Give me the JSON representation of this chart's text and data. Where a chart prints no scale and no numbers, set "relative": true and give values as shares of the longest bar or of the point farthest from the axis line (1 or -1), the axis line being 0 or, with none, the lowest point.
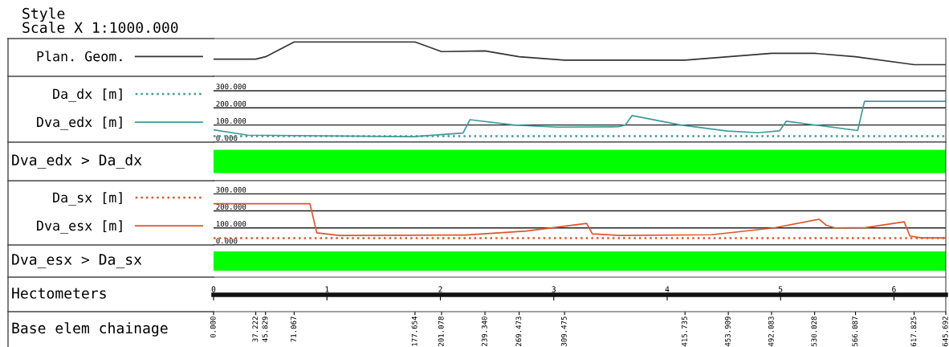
{
  "chart_data": [
    {
      "type": "line",
      "title": "Style\nScale X 1:1000.000",
      "relative": true,
      "legend": "left",
      "tick_labels": false,
      "xlim": [
        0,
        645.692
      ],
      "x": [
        0,
        37.222,
        45.829,
        71.067,
        177.654,
        201.078,
        239.34,
        269.473,
        309.475,
        415.735,
        492.083,
        530.028,
        566.087,
        617.825,
        645.692
      ],
      "series": [
        {
          "name": "Plan. Geom.",
          "color": "#333333",
          "values": [
            0.5,
            0.5,
            0.57,
            1,
            1,
            0.72,
            0.74,
            0.57,
            0.47,
            0.47,
            0.67,
            0.67,
            0.57,
            0.34,
            0.34
          ]
        }
      ]
    },
    {
      "type": "line",
      "legend": "left",
      "tick_labels": "y",
      "grid": "y",
      "xlim": [
        0,
        645.692
      ],
      "ylim": [
        0,
        384
      ],
      "yticks": [
        {
          "value": 0,
          "label": "0.000"
        },
        {
          "value": 100,
          "label": "100.000"
        },
        {
          "value": 200,
          "label": "200.000"
        },
        {
          "value": 300,
          "label": "300.000"
        }
      ],
      "series": [
        {
          "name": "Da_dx [m]",
          "color": "#3d9a9b",
          "line_style": "dotted",
          "x": [
            0,
            645.692
          ],
          "values": [
            35,
            35
          ]
        },
        {
          "name": "Dva_edx [m]",
          "color": "#3d9a9b",
          "line_style": "solid",
          "x": [
            0,
            30,
            176,
            220,
            226,
            265,
            303,
            357,
            363,
            369,
            412,
            453,
            480,
            499,
            505,
            568,
            574,
            645.692
          ],
          "values": [
            72,
            41,
            32,
            53,
            131,
            100,
            88,
            90,
            100,
            155,
            100,
            65,
            55,
            66,
            122,
            68,
            238,
            238
          ]
        }
      ]
    },
    {
      "type": "bar",
      "orientation": "horizontal",
      "ylabel": "Dva_edx > Da_dx",
      "tick_labels": false,
      "xlim": [
        0,
        645.692
      ],
      "categories": [
        null
      ],
      "values": [
        645.692
      ],
      "colors": [
        "#00ff00"
      ]
    },
    {
      "type": "line",
      "legend": "left",
      "tick_labels": "y",
      "grid": "y",
      "xlim": [
        0,
        645.692
      ],
      "ylim": [
        0,
        377
      ],
      "yticks": [
        {
          "value": 0,
          "label": "0.000"
        },
        {
          "value": 100,
          "label": "100.000"
        },
        {
          "value": 200,
          "label": "200.000"
        },
        {
          "value": 300,
          "label": "300.000"
        }
      ],
      "series": [
        {
          "name": "Da_sx [m]",
          "color": "#e0552a",
          "line_style": "dotted",
          "x": [
            0,
            645.692
          ],
          "values": [
            40,
            40
          ]
        },
        {
          "name": "Dva_esx [m]",
          "color": "#e0552a",
          "line_style": "solid",
          "x": [
            0,
            85,
            91,
            111,
            206,
            222,
            276,
            329,
            334,
            358,
            439,
            494,
            534,
            540,
            548,
            575,
            609,
            614,
            624,
            645.692
          ],
          "values": [
            242,
            242,
            71,
            56,
            58,
            58,
            82,
            127,
            65,
            56,
            60,
            100,
            151,
            117,
            100,
            102,
            136,
            53,
            42,
            42
          ]
        }
      ]
    },
    {
      "type": "bar",
      "orientation": "horizontal",
      "ylabel": "Dva_esx > Da_sx",
      "tick_labels": "x",
      "xlim": [
        0,
        645.692
      ],
      "categories": [
        null
      ],
      "values": [
        645.692
      ],
      "colors": [
        "#00ff00"
      ],
      "xlabel": "Base elem chainage",
      "x2label": "Hectometers",
      "x2lim": [
        0,
        6.45692
      ],
      "x2ticks": [
        0,
        1,
        2,
        3,
        4,
        5,
        6
      ],
      "xticks": [
        {
          "value": 0,
          "label": "0.000"
        },
        {
          "value": 37.222,
          "label": "37.222"
        },
        {
          "value": 45.829,
          "label": "45.829"
        },
        {
          "value": 71.067,
          "label": "71.067"
        },
        {
          "value": 177.654,
          "label": "177.654"
        },
        {
          "value": 201.078,
          "label": "201.078"
        },
        {
          "value": 239.34,
          "label": "239.340"
        },
        {
          "value": 269.473,
          "label": "269.473"
        },
        {
          "value": 309.475,
          "label": "309.475"
        },
        {
          "value": 415.735,
          "label": "415.735"
        },
        {
          "value": 453.909,
          "label": "453.909"
        },
        {
          "value": 492.083,
          "label": "492.083"
        },
        {
          "value": 530.028,
          "label": "530.028"
        },
        {
          "value": 566.087,
          "label": "566.087"
        },
        {
          "value": 617.825,
          "label": "617.825"
        },
        {
          "value": 645.692,
          "label": "645.692"
        }
      ]
    }
  ]
}
